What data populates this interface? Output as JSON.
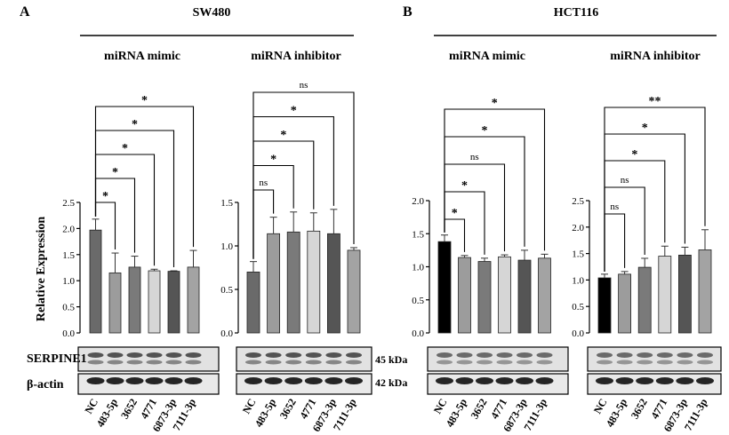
{
  "panels": [
    {
      "letter": "A",
      "cell_line": "SW480",
      "blot_labels": [
        "SERPINE1",
        "β-actin"
      ],
      "kda_labels": [
        "45 kDa",
        "42 kDa"
      ]
    },
    {
      "letter": "B",
      "cell_line": "HCT116",
      "blot_labels": [],
      "kda_labels": []
    }
  ],
  "chart_data": [
    {
      "type": "bar",
      "panel": "A",
      "title": "miRNA mimic",
      "ylabel": "Relative Expression",
      "ylim": [
        0,
        2.5
      ],
      "yticks": [
        "0.0",
        "0.5",
        "1.0",
        "1.5",
        "2.0",
        "2.5"
      ],
      "categories": [
        "NC",
        "483-5p",
        "3652",
        "4771",
        "6873-3p",
        "7111-3p"
      ],
      "values": [
        1.97,
        1.15,
        1.26,
        1.19,
        1.18,
        1.26
      ],
      "errors": [
        0.21,
        0.38,
        0.21,
        0.03,
        0.01,
        0.32
      ],
      "colors": [
        "#6a6a6a",
        "#9c9c9c",
        "#7a7a7a",
        "#d6d6d6",
        "#555555",
        "#a3a3a3"
      ],
      "significance": [
        "*",
        "*",
        "*",
        "*",
        "*"
      ]
    },
    {
      "type": "bar",
      "panel": "A",
      "title": "miRNA inhibitor",
      "ylabel": "",
      "ylim": [
        0,
        1.5
      ],
      "yticks": [
        "0.0",
        "0.5",
        "1.0",
        "1.5"
      ],
      "categories": [
        "NC",
        "483-5p",
        "3652",
        "4771",
        "6873-3p",
        "7111-3p"
      ],
      "values": [
        0.7,
        1.14,
        1.16,
        1.17,
        1.14,
        0.95
      ],
      "errors": [
        0.12,
        0.19,
        0.23,
        0.21,
        0.28,
        0.03
      ],
      "colors": [
        "#6a6a6a",
        "#9c9c9c",
        "#7a7a7a",
        "#d6d6d6",
        "#555555",
        "#a3a3a3"
      ],
      "significance": [
        "ns",
        "*",
        "*",
        "*",
        "ns"
      ]
    },
    {
      "type": "bar",
      "panel": "B",
      "title": "miRNA mimic",
      "ylabel": "",
      "ylim": [
        0,
        2.0
      ],
      "yticks": [
        "0.0",
        "0.5",
        "1.0",
        "1.5",
        "2.0"
      ],
      "categories": [
        "NC",
        "483-5p",
        "3652",
        "4771",
        "6873-3p",
        "7111-3p"
      ],
      "values": [
        1.38,
        1.14,
        1.08,
        1.15,
        1.1,
        1.13
      ],
      "errors": [
        0.1,
        0.03,
        0.05,
        0.03,
        0.15,
        0.06
      ],
      "colors": [
        "#000000",
        "#9c9c9c",
        "#7a7a7a",
        "#d6d6d6",
        "#555555",
        "#a3a3a3"
      ],
      "significance": [
        "*",
        "*",
        "ns",
        "*",
        "*"
      ]
    },
    {
      "type": "bar",
      "panel": "B",
      "title": "miRNA inhibitor",
      "ylabel": "",
      "ylim": [
        0,
        2.5
      ],
      "yticks": [
        "0.0",
        "0.5",
        "1.0",
        "1.5",
        "2.0",
        "2.5"
      ],
      "categories": [
        "NC",
        "483-5p",
        "3652",
        "4771",
        "6873-3p",
        "7111-3p"
      ],
      "values": [
        1.04,
        1.11,
        1.24,
        1.45,
        1.47,
        1.57
      ],
      "errors": [
        0.07,
        0.05,
        0.17,
        0.19,
        0.15,
        0.38
      ],
      "colors": [
        "#000000",
        "#9c9c9c",
        "#7a7a7a",
        "#d6d6d6",
        "#555555",
        "#a3a3a3"
      ],
      "significance": [
        "ns",
        "ns",
        "*",
        "*",
        "**"
      ]
    }
  ]
}
